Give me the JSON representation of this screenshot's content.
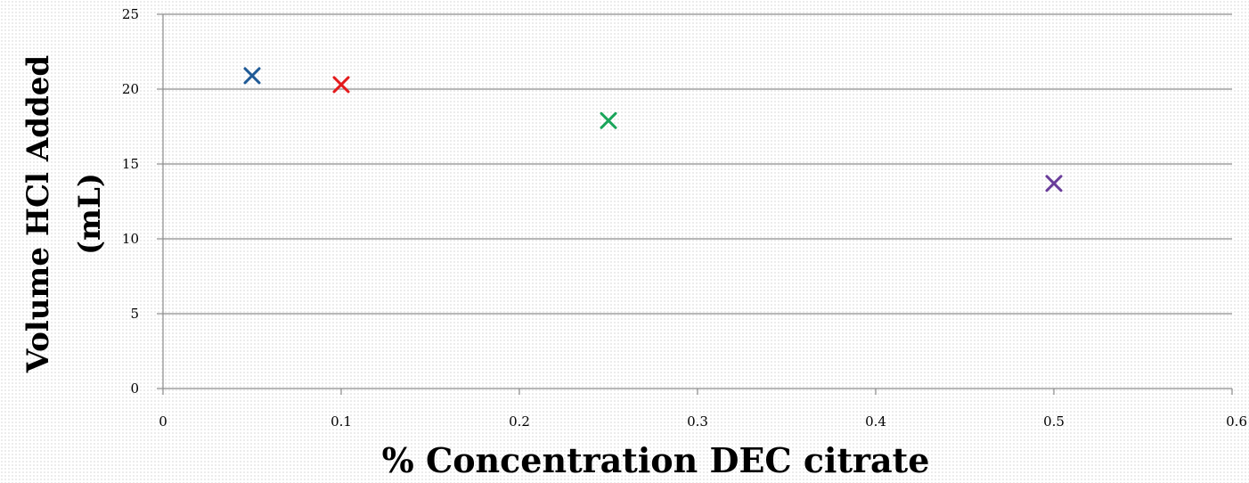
{
  "chart_data": {
    "type": "scatter",
    "title": "",
    "xlabel": "% Concentration DEC citrate",
    "ylabel_lines": [
      "Volume HCl Added",
      "(mL)"
    ],
    "xlim": [
      0,
      0.6
    ],
    "ylim": [
      0,
      25
    ],
    "x_ticks": [
      "0",
      "0.1",
      "0.2",
      "0.3",
      "0.4",
      "0.5",
      "0.6"
    ],
    "y_ticks": [
      "0",
      "5",
      "10",
      "15",
      "20",
      "25"
    ],
    "grid": "horizontal",
    "marker": "x",
    "points": [
      {
        "x": 0.05,
        "y": 20.9,
        "color": "#1f5a96"
      },
      {
        "x": 0.1,
        "y": 20.3,
        "color": "#e31a1c"
      },
      {
        "x": 0.25,
        "y": 17.9,
        "color": "#1aa55a"
      },
      {
        "x": 0.5,
        "y": 13.7,
        "color": "#6a3d9a"
      }
    ]
  }
}
